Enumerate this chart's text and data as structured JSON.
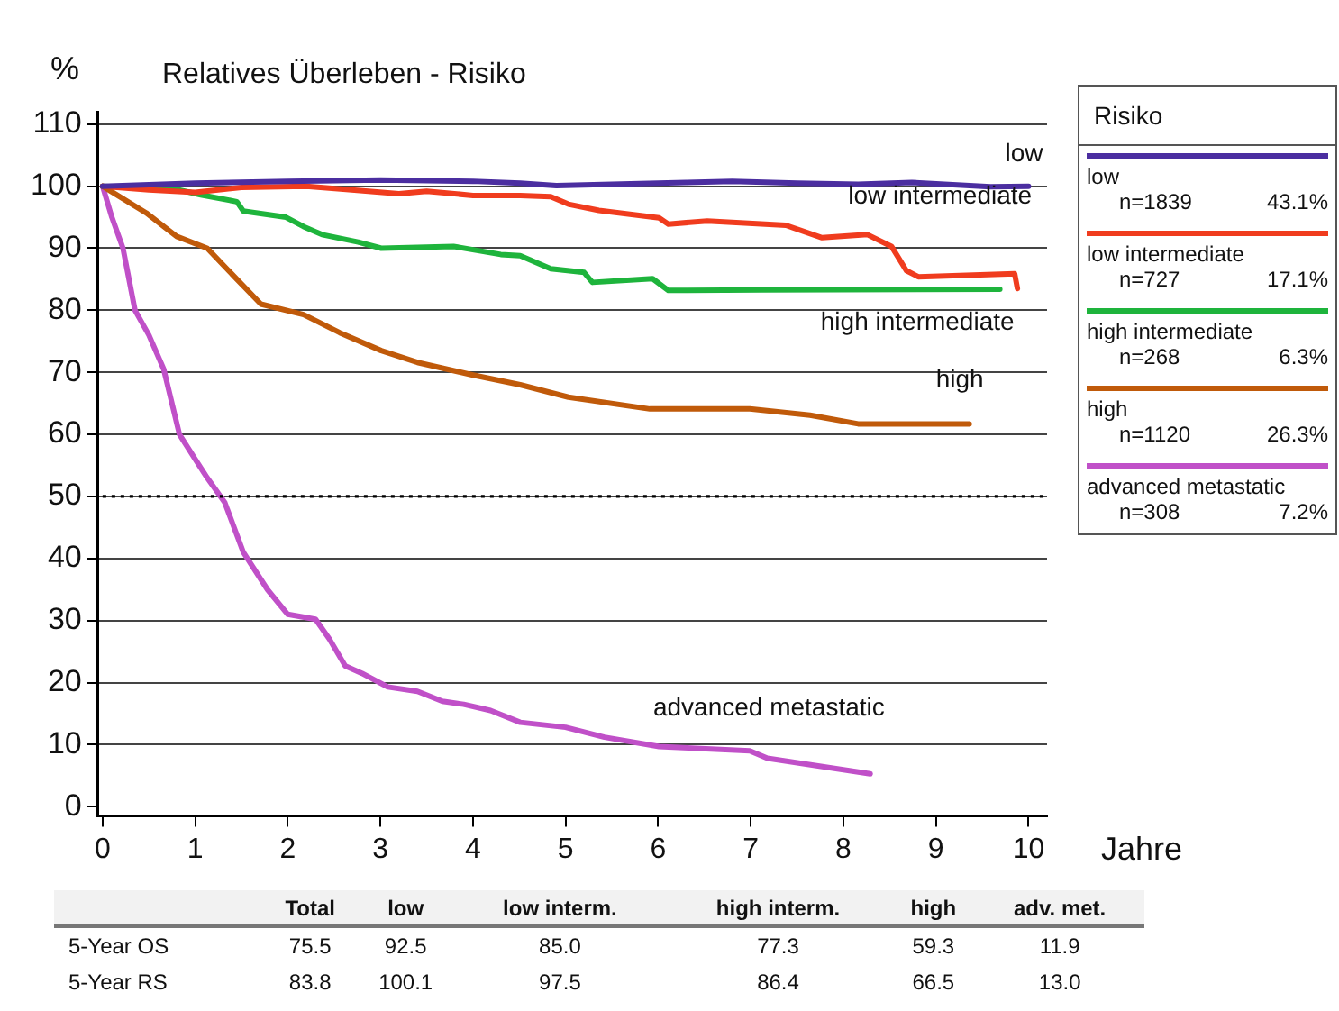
{
  "chart_data": {
    "type": "line",
    "title": "Relatives Überleben - Risiko",
    "xlabel": "Jahre",
    "ylabel": "%",
    "legend_title": "Risiko",
    "legend": "right",
    "grid": "y",
    "marker": "none",
    "line_style": "solid",
    "xlim": [
      -0.05,
      10.2
    ],
    "ylim": [
      -1.5,
      112
    ],
    "xticks": [
      0,
      1,
      2,
      3,
      4,
      5,
      6,
      7,
      8,
      9,
      10
    ],
    "yticks": [
      0,
      10,
      20,
      30,
      40,
      50,
      60,
      70,
      80,
      90,
      100,
      110
    ],
    "ref_lines": [
      {
        "axis": "y",
        "value": 50,
        "line_style": "dotted",
        "color": "#000000"
      }
    ],
    "series": [
      {
        "name": "low",
        "color": "#4b2ea0",
        "x": [
          0,
          1,
          2,
          3,
          4,
          4.51,
          4.9,
          5.5,
          6.3,
          6.8,
          7.5,
          8.16,
          8.74,
          9.59,
          10
        ],
        "values": [
          100,
          100.5,
          100.8,
          101,
          100.8,
          100.5,
          100.1,
          100.3,
          100.6,
          100.8,
          100.5,
          100.3,
          100.6,
          99.9,
          100
        ]
      },
      {
        "name": "low intermediate",
        "color": "#f03c1e",
        "x": [
          0,
          0.5,
          1,
          1.5,
          2.2,
          2.6,
          3.2,
          3.5,
          4,
          4.51,
          4.84,
          5.03,
          5.36,
          6.01,
          6.11,
          6.53,
          7.38,
          7.77,
          8.26,
          8.52,
          8.68,
          8.81,
          9.85,
          9.88
        ],
        "values": [
          100,
          99.4,
          99,
          99.8,
          100,
          99.5,
          98.8,
          99.2,
          98.5,
          98.5,
          98.3,
          97.1,
          96.1,
          94.9,
          93.9,
          94.4,
          93.7,
          91.7,
          92.2,
          90.3,
          86.4,
          85.4,
          85.9,
          83.5
        ]
      },
      {
        "name": "high intermediate",
        "color": "#1eb43c",
        "x": [
          0,
          0.8,
          1.06,
          1.45,
          1.52,
          1.98,
          2.17,
          2.37,
          2.76,
          3.01,
          3.79,
          4.3,
          4.51,
          4.84,
          5.2,
          5.29,
          5.94,
          6.11,
          7.12,
          9.69
        ],
        "values": [
          100,
          99.5,
          98.6,
          97.5,
          96,
          95,
          93.5,
          92.2,
          91,
          90,
          90.3,
          89,
          88.8,
          86.7,
          86.1,
          84.5,
          85.1,
          83.2,
          83.3,
          83.4
        ]
      },
      {
        "name": "high",
        "color": "#c05a0a",
        "x": [
          0,
          0.47,
          0.8,
          1.13,
          1.45,
          1.71,
          2.17,
          2.56,
          3.01,
          3.4,
          3.99,
          4.51,
          5.03,
          5.91,
          6.99,
          7.64,
          8.16,
          9.36
        ],
        "values": [
          100,
          95.7,
          91.9,
          90,
          85,
          81,
          79.3,
          76.4,
          73.5,
          71.6,
          69.6,
          68,
          66,
          64.1,
          64.1,
          63.1,
          61.7,
          61.7
        ]
      },
      {
        "name": "advanced metastatic",
        "color": "#c050c8",
        "x": [
          0,
          0.1,
          0.22,
          0.35,
          0.5,
          0.66,
          0.83,
          1,
          1.13,
          1.32,
          1.52,
          1.78,
          2,
          2.3,
          2.45,
          2.62,
          2.8,
          3.08,
          3.4,
          3.67,
          3.9,
          4.19,
          4.51,
          5,
          5.42,
          6.01,
          6.99,
          7.18,
          8.29
        ],
        "values": [
          100,
          95,
          90,
          80,
          76,
          70.5,
          60,
          56,
          53,
          49,
          41,
          35,
          31,
          30.2,
          27,
          22.7,
          21.5,
          19.3,
          18.6,
          17,
          16.5,
          15.5,
          13.6,
          12.8,
          11.2,
          9.7,
          9,
          7.8,
          5.3
        ]
      }
    ],
    "annotations": [
      "n=1839",
      "43.1%",
      "n=727",
      "17.1%",
      "n=268",
      "6.3%",
      "n=1120",
      "26.3%",
      "n=308",
      "7.2%",
      "Total",
      "low",
      "low interm.",
      "high interm.",
      "high",
      "adv. met.",
      "5-Year OS",
      "75.5",
      "92.5",
      "85.0",
      "77.3",
      "59.3",
      "11.9",
      "5-Year RS",
      "83.8",
      "100.1",
      "97.5",
      "86.4",
      "66.5",
      "13.0"
    ]
  }
}
